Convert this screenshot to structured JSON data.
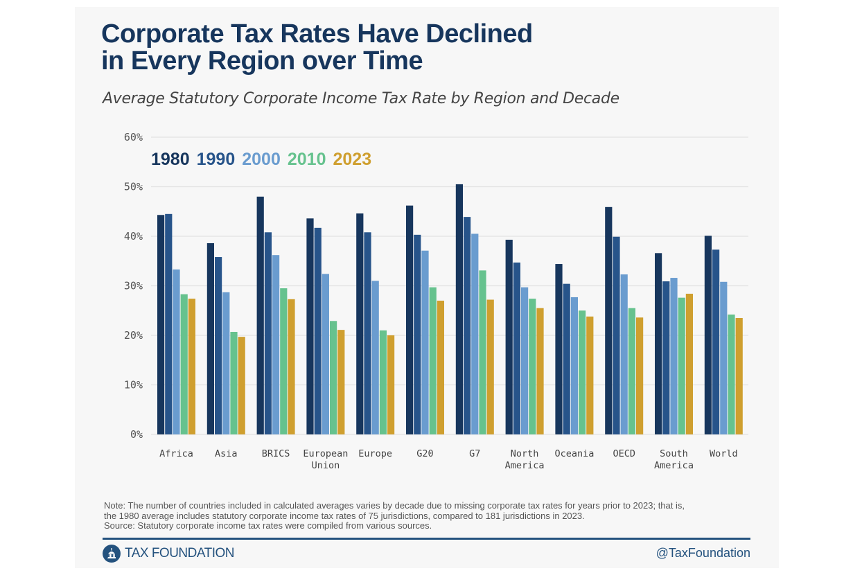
{
  "header": {
    "title_line1": "Corporate Tax Rates Have Declined",
    "title_line2": "in Every Region over Time",
    "subtitle": "Average Statutory Corporate Income Tax Rate by Region and Decade"
  },
  "footer": {
    "note_line1": "Note: The number of countries included in calculated averages varies by decade due to missing corporate tax rates for years prior to 2023; that is,",
    "note_line2": "the 1980 average includes statutory corporate income tax rates of 75 jurisdictions, compared to 181 jurisdictions in 2023.",
    "source": "Source: Statutory corporate income tax rates were compiled from various sources.",
    "brand_icon": "capitol-dome-icon",
    "brand_name": "TAX FOUNDATION",
    "handle": "@TaxFoundation",
    "brand_color": "#24527e"
  },
  "chart_data": {
    "type": "bar",
    "title": "Corporate Tax Rates Have Declined in Every Region over Time",
    "subtitle": "Average Statutory Corporate Income Tax Rate by Region and Decade",
    "xlabel": "",
    "ylabel": "",
    "ylim": [
      0,
      60
    ],
    "yticks": [
      0,
      10,
      20,
      30,
      40,
      50,
      60
    ],
    "ytick_labels": [
      "0%",
      "10%",
      "20%",
      "30%",
      "40%",
      "50%",
      "60%"
    ],
    "grid": true,
    "legend_position": "top-left",
    "categories": [
      [
        "Africa"
      ],
      [
        "Asia"
      ],
      [
        "BRICS"
      ],
      [
        "European",
        "Union"
      ],
      [
        "Europe"
      ],
      [
        "G20"
      ],
      [
        "G7"
      ],
      [
        "North",
        "America"
      ],
      [
        "Oceania"
      ],
      [
        "OECD"
      ],
      [
        "South",
        "America"
      ],
      [
        "World"
      ]
    ],
    "series": [
      {
        "name": "1980",
        "color": "#17365d",
        "values": [
          44.3,
          38.6,
          48.0,
          43.6,
          44.6,
          46.2,
          50.5,
          39.3,
          34.4,
          45.9,
          36.6,
          40.1
        ]
      },
      {
        "name": "1990",
        "color": "#27548a",
        "values": [
          44.5,
          35.8,
          40.8,
          41.7,
          40.8,
          40.3,
          43.9,
          34.7,
          30.4,
          39.9,
          30.9,
          37.3
        ]
      },
      {
        "name": "2000",
        "color": "#6a9ccf",
        "values": [
          33.3,
          28.7,
          36.2,
          32.4,
          31.0,
          37.1,
          40.5,
          29.7,
          27.7,
          32.3,
          31.6,
          30.8
        ]
      },
      {
        "name": "2010",
        "color": "#66c28e",
        "values": [
          28.3,
          20.7,
          29.5,
          22.9,
          21.0,
          29.7,
          33.1,
          27.4,
          25.0,
          25.5,
          27.6,
          24.2
        ]
      },
      {
        "name": "2023",
        "color": "#cf9f2f",
        "values": [
          27.4,
          19.7,
          27.3,
          21.1,
          20.0,
          27.0,
          27.2,
          25.5,
          23.8,
          23.6,
          28.4,
          23.5
        ]
      }
    ]
  }
}
